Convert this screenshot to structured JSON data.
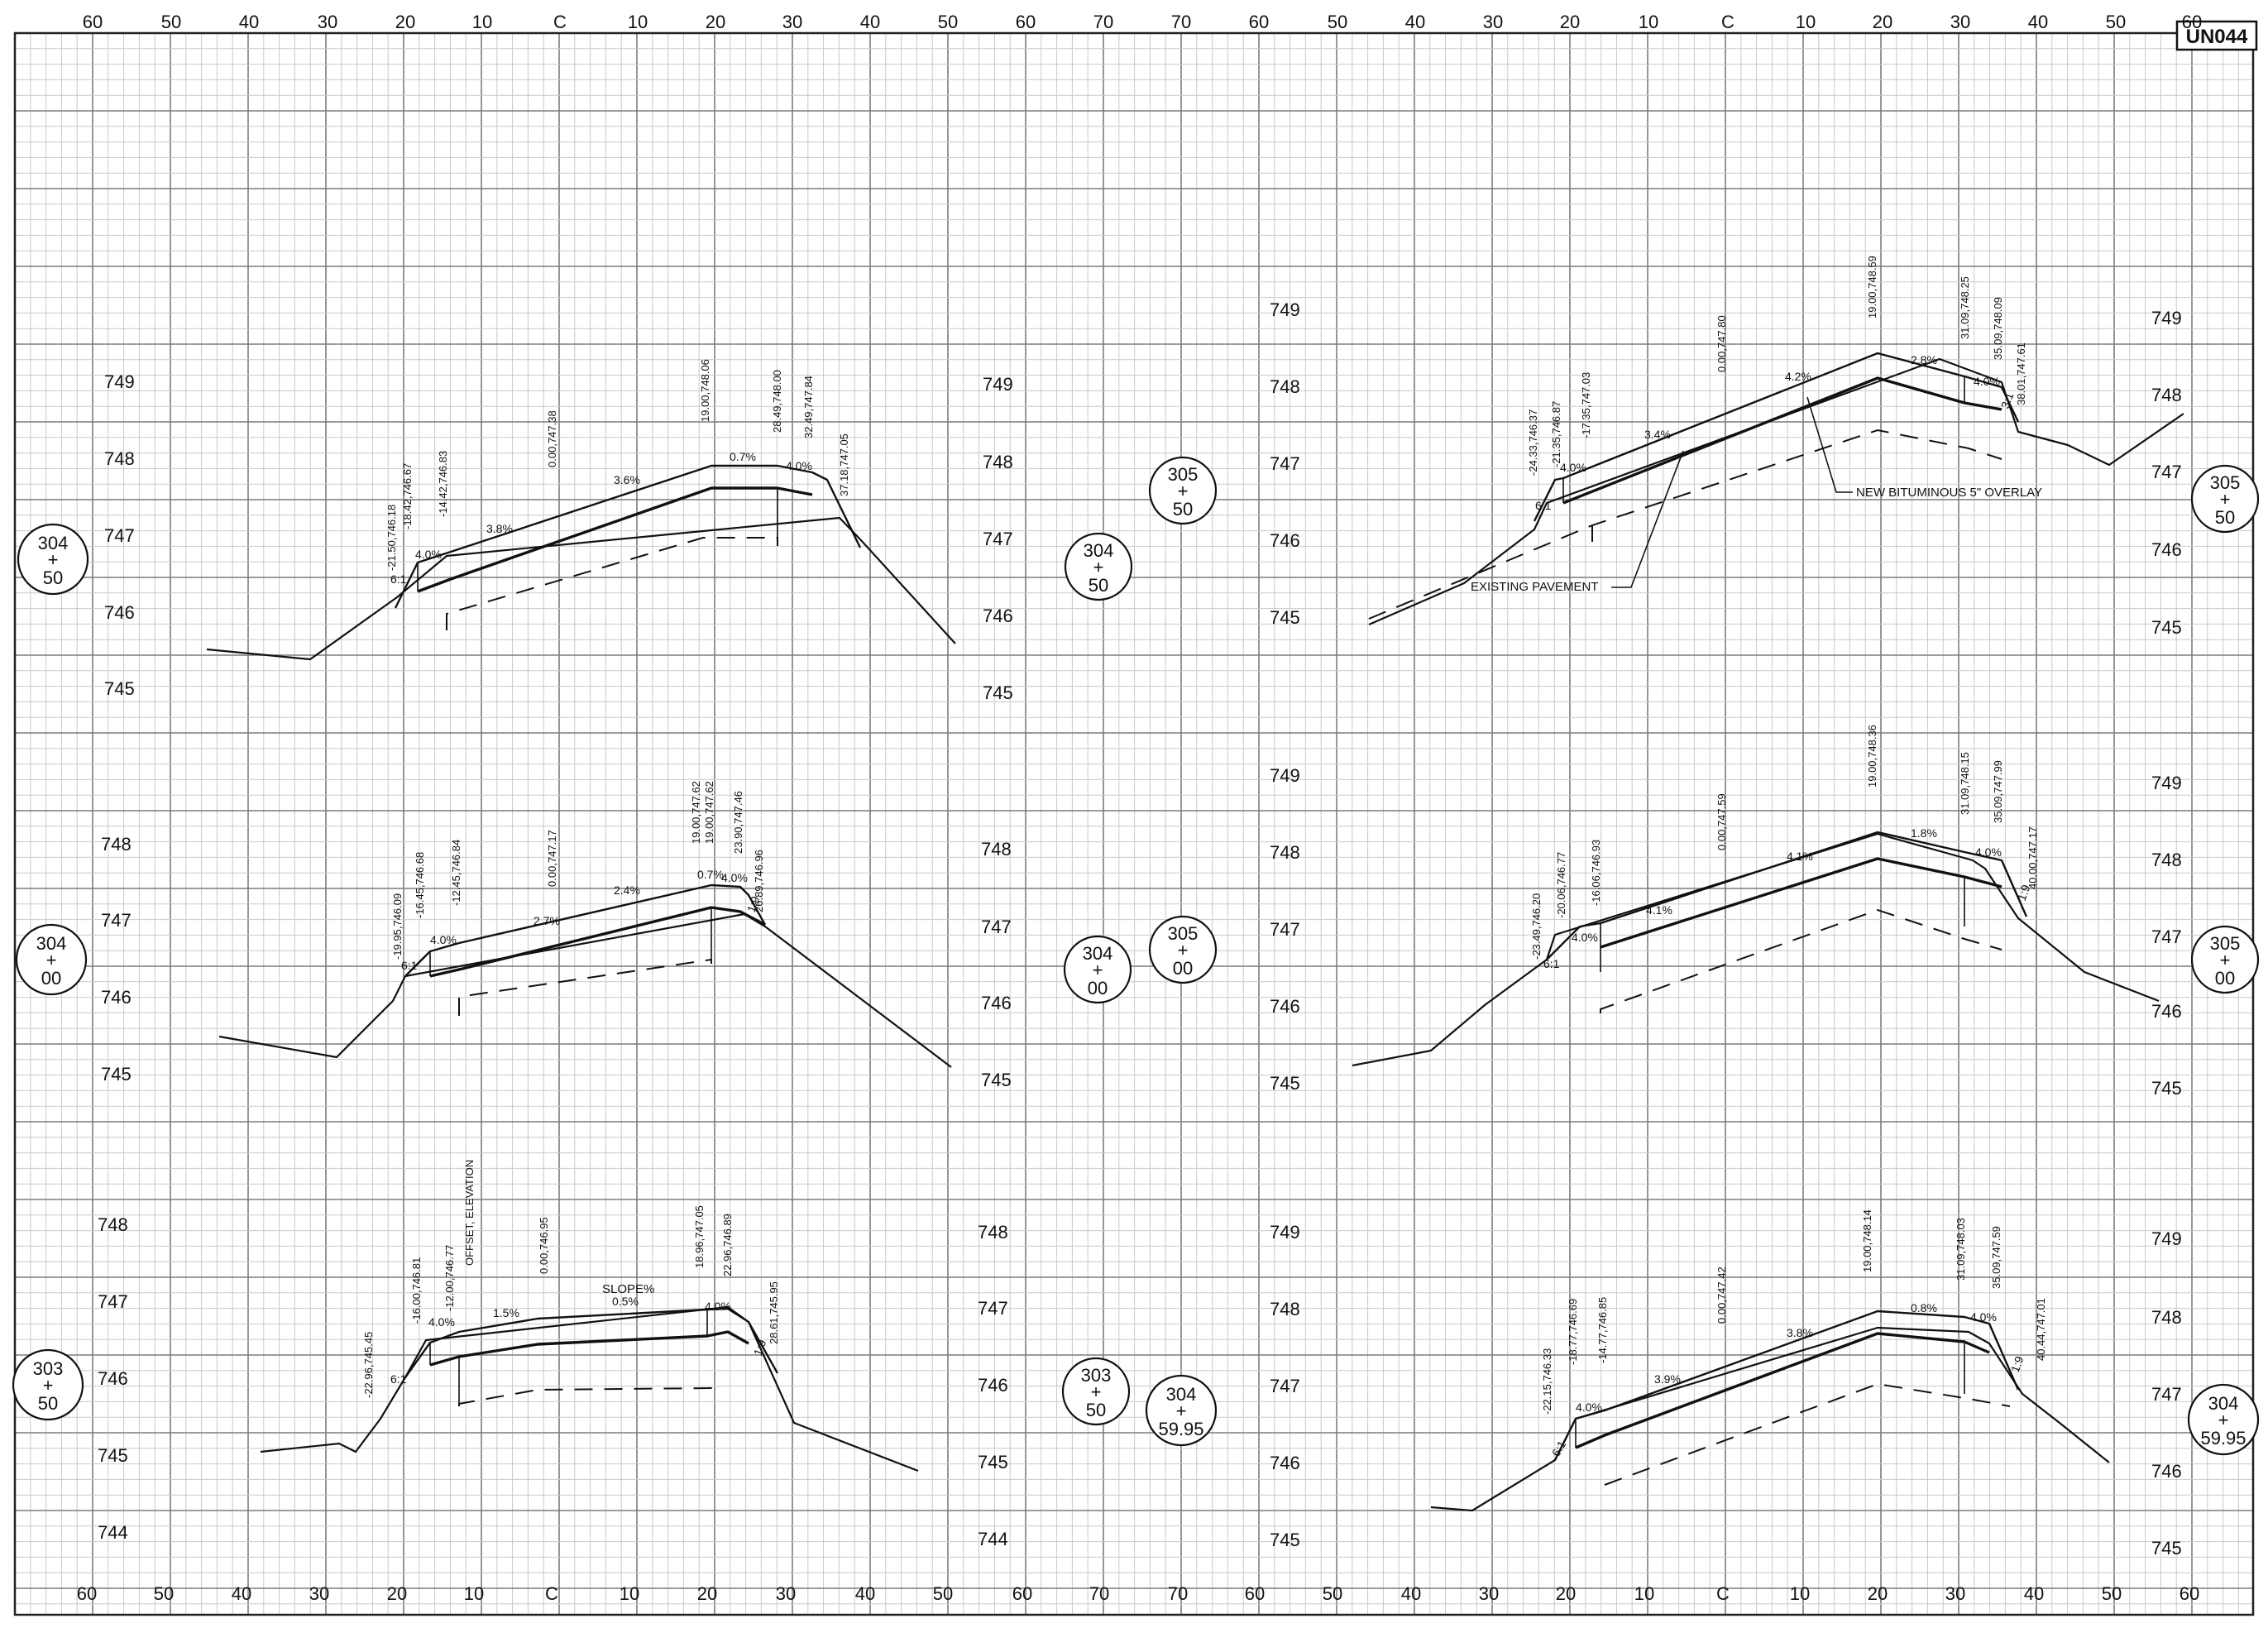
{
  "sheet": {
    "id": "UN044",
    "axis_top": [
      "60",
      "50",
      "40",
      "30",
      "20",
      "10",
      "C",
      "10",
      "20",
      "30",
      "40",
      "50",
      "60",
      "70",
      "70",
      "60",
      "50",
      "40",
      "30",
      "20",
      "10",
      "C",
      "10",
      "20",
      "30",
      "40",
      "50",
      "60"
    ],
    "axis_bottom": [
      "60",
      "50",
      "40",
      "30",
      "20",
      "10",
      "C",
      "10",
      "20",
      "30",
      "40",
      "50",
      "60",
      "70",
      "70",
      "60",
      "50",
      "40",
      "30",
      "20",
      "10",
      "C",
      "10",
      "20",
      "30",
      "40",
      "50",
      "60"
    ]
  },
  "sections": [
    {
      "station": [
        "304",
        "+",
        "50"
      ],
      "elevations_left": [
        "749",
        "748",
        "747",
        "746",
        "745"
      ],
      "elevations_right": [
        "749",
        "748",
        "747",
        "746",
        "745"
      ],
      "offsets": [
        "-21.50,746.18",
        "-18.42,746.67",
        "-14.42,746.83",
        "0.00,747.38",
        "19.00,748.06",
        "28.49,748.00",
        "32.49,747.84",
        "37.18,747.05"
      ],
      "slopes": [
        "6:1",
        "4.0%",
        "3.8%",
        "3.6%",
        "0.7%",
        "4.0%"
      ],
      "notes": []
    },
    {
      "station": [
        "305",
        "+",
        "50"
      ],
      "elevations_left": [
        "749",
        "748",
        "747",
        "746",
        "745"
      ],
      "elevations_right": [
        "749",
        "748",
        "747",
        "746",
        "745"
      ],
      "offsets": [
        "-24.33,746.37",
        "-21.35,746.87",
        "-17.35,747.03",
        "0.00,747.80",
        "19.00,748.59",
        "31.09,748.25",
        "35.09,748.09",
        "38.01,747.61"
      ],
      "slopes": [
        "6:1",
        "4.0%",
        "3.4%",
        "4.2%",
        "2.8%",
        "4.0%",
        "3:1"
      ],
      "notes": [
        "NEW BITUMINOUS 5\" OVERLAY",
        "EXISTING PAVEMENT"
      ]
    },
    {
      "station": [
        "304",
        "+",
        "00"
      ],
      "elevations_left": [
        "748",
        "747",
        "746",
        "745"
      ],
      "elevations_right": [
        "748",
        "747",
        "746",
        "745"
      ],
      "offsets": [
        "-19.95,746.09",
        "-16.45,746.68",
        "-12.45,746.84",
        "0.00,747.17",
        "19.00,747.62",
        "19.00,747.62",
        "23.90,747.46",
        "26.89,746.96"
      ],
      "slopes": [
        "6:1",
        "4.0%",
        "2.7%",
        "2.4%",
        "0.7%",
        "4.0%",
        "1:9"
      ],
      "notes": []
    },
    {
      "station": [
        "305",
        "+",
        "00"
      ],
      "elevations_left": [
        "749",
        "748",
        "747",
        "746",
        "745"
      ],
      "elevations_right": [
        "749",
        "748",
        "747",
        "746",
        "745"
      ],
      "offsets": [
        "-23.49,746.20",
        "-20.06,746.77",
        "-16.06,746.93",
        "0.00,747.59",
        "19.00,748.36",
        "31.09,748.15",
        "35.09,747.99",
        "40.00,747.17"
      ],
      "slopes": [
        "6:1",
        "4.0%",
        "4.1%",
        "4.1%",
        "1.8%",
        "4.0%",
        "1:9"
      ],
      "notes": []
    },
    {
      "station": [
        "303",
        "+",
        "50"
      ],
      "elevations_left": [
        "748",
        "747",
        "746",
        "745",
        "744"
      ],
      "elevations_right": [
        "748",
        "747",
        "746",
        "745",
        "744"
      ],
      "offsets": [
        "-22.96,745.45",
        "-16.00,746.81",
        "-12.00,746.77",
        "0.00,746.95",
        "18.96,747.05",
        "22.96,746.89",
        "28.61,745.95"
      ],
      "slopes": [
        "6:1",
        "4.0%",
        "1.5%",
        "0.5%",
        "4.0%",
        "1:9"
      ],
      "notes": [
        "OFFSET, ELEVATION",
        "SLOPE%"
      ]
    },
    {
      "station": [
        "304",
        "+",
        "59.95"
      ],
      "elevations_left": [
        "749",
        "748",
        "747",
        "746",
        "745"
      ],
      "elevations_right": [
        "749",
        "748",
        "747",
        "746",
        "745"
      ],
      "offsets": [
        "-22.15,746.33",
        "-18.77,746.69",
        "-14.77,746.85",
        "0.00,747.42",
        "19.00,748.14",
        "31.09,748.03",
        "35.09,747.59",
        "40.44,747.01"
      ],
      "slopes": [
        "6:1",
        "4.0%",
        "3.9%",
        "3.8%",
        "0.8%",
        "4.0%",
        "1:9"
      ],
      "notes": []
    }
  ],
  "station_labels_mid": [
    [
      "305",
      "+",
      "50"
    ],
    [
      "304",
      "+",
      "50"
    ],
    [
      "304",
      "+",
      "00"
    ],
    [
      "305",
      "+",
      "00"
    ],
    [
      "303",
      "+",
      "50"
    ],
    [
      "304",
      "+",
      "59.95"
    ]
  ]
}
